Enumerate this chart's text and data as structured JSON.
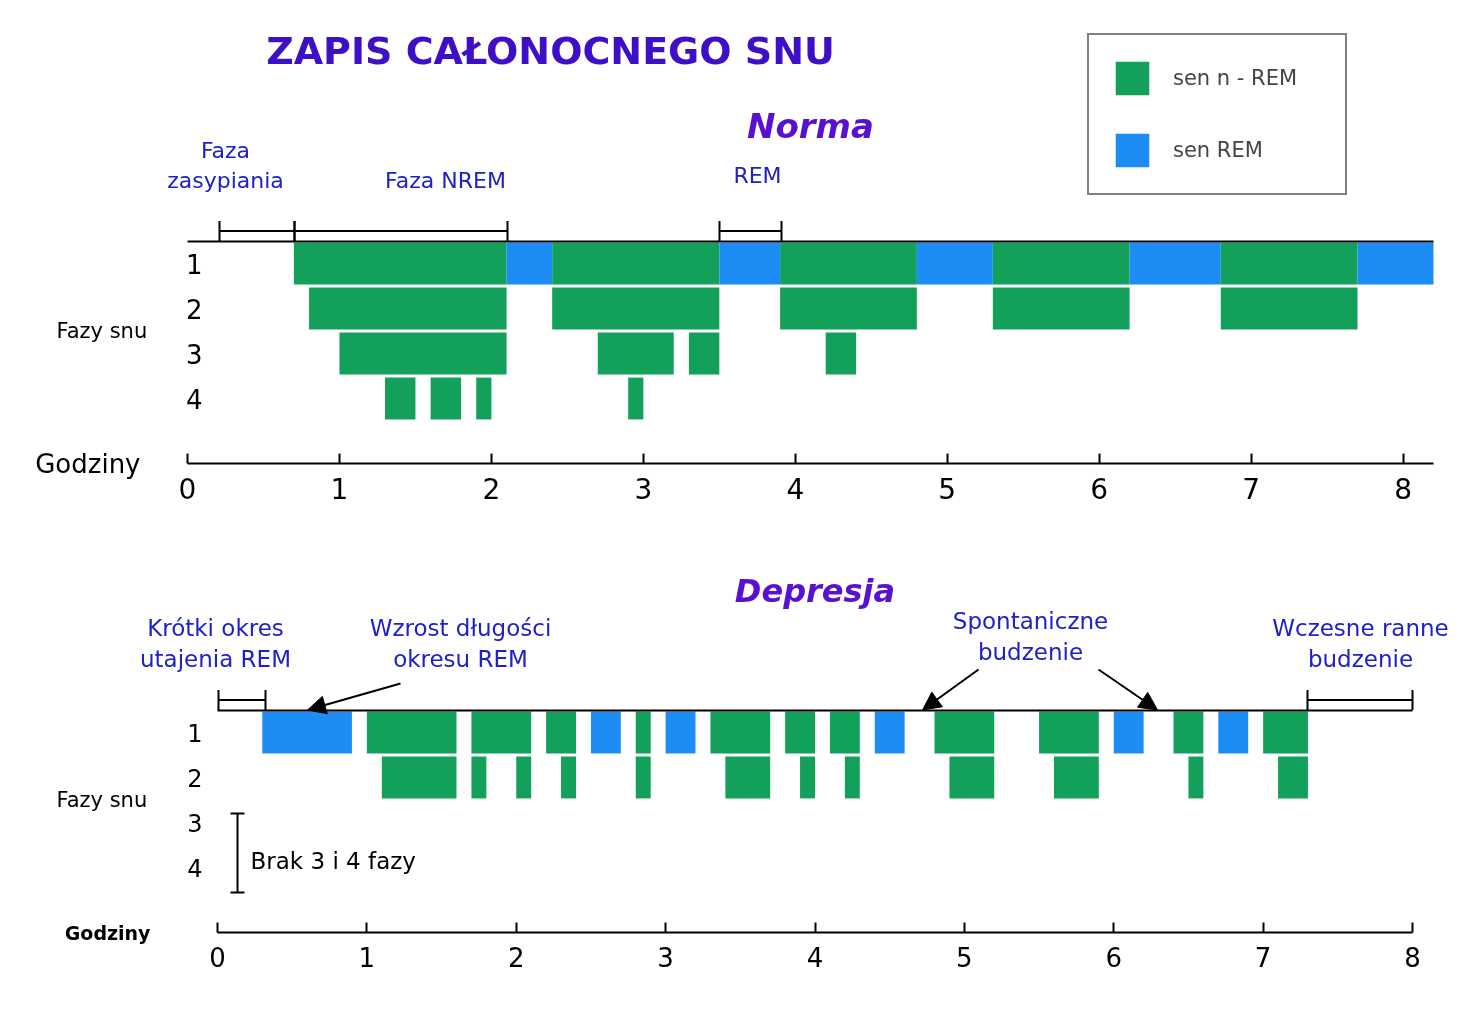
{
  "chart_data": [
    {
      "type": "bar",
      "orientation": "horizontal",
      "title": "ZAPIS CAŁONOCNEGO SNU",
      "subtitle": "Norma",
      "xlabel": "Godziny",
      "ylabel": "Fazy snu",
      "categories": [
        "1",
        "2",
        "3",
        "4"
      ],
      "xlim": [
        0,
        8.2
      ],
      "xticks": [
        0,
        1,
        2,
        3,
        4,
        5,
        6,
        7,
        8
      ],
      "legend": "top right",
      "series": [
        {
          "name": "sen n - REM",
          "color": "#12a05a",
          "base": [
            0.7,
            0.8,
            1.0,
            1.3
          ],
          "values": [
            1.4,
            1.3,
            1.1,
            0.2
          ]
        },
        {
          "color": "#12a05a",
          "base": [
            2.4,
            2.4,
            2.7,
            1.6
          ],
          "values": [
            1.1,
            1.1,
            0.5,
            0.2
          ]
        },
        {
          "color": "#12a05a",
          "base": [
            3.9,
            3.9,
            3.3,
            1.9
          ],
          "values": [
            0.9,
            0.9,
            0.2,
            0.1
          ]
        },
        {
          "color": "#12a05a",
          "base": [
            5.3,
            5.3,
            4.2,
            2.9
          ],
          "values": [
            0.9,
            0.9,
            0.2,
            0.1
          ]
        },
        {
          "color": "#12a05a",
          "base": [
            6.8,
            6.8,
            null,
            null
          ],
          "values": [
            0.9,
            0.9,
            null,
            null
          ]
        },
        {
          "name": "sen REM",
          "color": "#1e8cf5",
          "base": [
            2.1,
            null,
            null,
            null
          ],
          "values": [
            0.3,
            null,
            null,
            null
          ]
        },
        {
          "color": "#1e8cf5",
          "base": [
            3.5,
            null,
            null,
            null
          ],
          "values": [
            0.4,
            null,
            null,
            null
          ]
        },
        {
          "color": "#1e8cf5",
          "base": [
            4.8,
            null,
            null,
            null
          ],
          "values": [
            0.5,
            null,
            null,
            null
          ]
        },
        {
          "color": "#1e8cf5",
          "base": [
            6.2,
            null,
            null,
            null
          ],
          "values": [
            0.6,
            null,
            null,
            null
          ]
        },
        {
          "color": "#1e8cf5",
          "base": [
            7.7,
            null,
            null,
            null
          ],
          "values": [
            0.5,
            null,
            null,
            null
          ]
        }
      ],
      "annotations": [
        "Faza\nzasypiania",
        "Faza NREM",
        "REM"
      ]
    },
    {
      "type": "bar",
      "orientation": "horizontal",
      "title": "Depresja",
      "xlabel": "Godziny",
      "ylabel": "Fazy snu",
      "categories": [
        "1",
        "2",
        "3",
        "4"
      ],
      "xlim": [
        0,
        8
      ],
      "xticks": [
        0,
        1,
        2,
        3,
        4,
        5,
        6,
        7,
        8
      ],
      "series": [
        {
          "color": "#1e8cf5",
          "base": [
            0.3,
            null,
            null,
            null
          ],
          "values": [
            0.6,
            null,
            null,
            null
          ]
        },
        {
          "color": "#12a05a",
          "base": [
            1.0,
            1.1,
            null,
            null
          ],
          "values": [
            0.6,
            0.5,
            null,
            null
          ]
        },
        {
          "color": "#12a05a",
          "base": [
            1.7,
            1.7,
            null,
            null
          ],
          "values": [
            0.4,
            0.1,
            null,
            null
          ]
        },
        {
          "color": "#12a05a",
          "base": [
            null,
            2.0,
            null,
            null
          ],
          "values": [
            null,
            0.1,
            null,
            null
          ]
        },
        {
          "color": "#12a05a",
          "base": [
            2.2,
            2.3,
            null,
            null
          ],
          "values": [
            0.2,
            0.1,
            null,
            null
          ]
        },
        {
          "color": "#1e8cf5",
          "base": [
            2.5,
            null,
            null,
            null
          ],
          "values": [
            0.2,
            null,
            null,
            null
          ]
        },
        {
          "color": "#12a05a",
          "base": [
            2.8,
            2.8,
            null,
            null
          ],
          "values": [
            0.1,
            0.1,
            null,
            null
          ]
        },
        {
          "color": "#1e8cf5",
          "base": [
            3.0,
            null,
            null,
            null
          ],
          "values": [
            0.2,
            null,
            null,
            null
          ]
        },
        {
          "color": "#12a05a",
          "base": [
            3.3,
            3.4,
            null,
            null
          ],
          "values": [
            0.4,
            0.3,
            null,
            null
          ]
        },
        {
          "color": "#12a05a",
          "base": [
            3.8,
            3.9,
            null,
            null
          ],
          "values": [
            0.2,
            0.1,
            null,
            null
          ]
        },
        {
          "color": "#12a05a",
          "base": [
            4.1,
            4.2,
            null,
            null
          ],
          "values": [
            0.2,
            0.1,
            null,
            null
          ]
        },
        {
          "color": "#1e8cf5",
          "base": [
            4.4,
            null,
            null,
            null
          ],
          "values": [
            0.2,
            null,
            null,
            null
          ]
        },
        {
          "color": "#12a05a",
          "base": [
            4.8,
            4.9,
            null,
            null
          ],
          "values": [
            0.4,
            0.3,
            null,
            null
          ]
        },
        {
          "color": "#12a05a",
          "base": [
            5.5,
            5.6,
            null,
            null
          ],
          "values": [
            0.4,
            0.3,
            null,
            null
          ]
        },
        {
          "color": "#1e8cf5",
          "base": [
            6.0,
            null,
            null,
            null
          ],
          "values": [
            0.2,
            null,
            null,
            null
          ]
        },
        {
          "color": "#12a05a",
          "base": [
            6.4,
            6.5,
            null,
            null
          ],
          "values": [
            0.2,
            0.1,
            null,
            null
          ]
        },
        {
          "color": "#1e8cf5",
          "base": [
            6.7,
            null,
            null,
            null
          ],
          "values": [
            0.2,
            null,
            null,
            null
          ]
        },
        {
          "color": "#12a05a",
          "base": [
            7.0,
            7.1,
            null,
            null
          ],
          "values": [
            0.3,
            0.2,
            null,
            null
          ]
        }
      ],
      "annotations": [
        "Krótki okres\nutajenia REM",
        "Wzrost długości\nokresu REM",
        "Spontaniczne\nbudzenie",
        "Wczesne ranne\nbudzenie",
        "Brak 3 i 4 fazy"
      ]
    }
  ]
}
